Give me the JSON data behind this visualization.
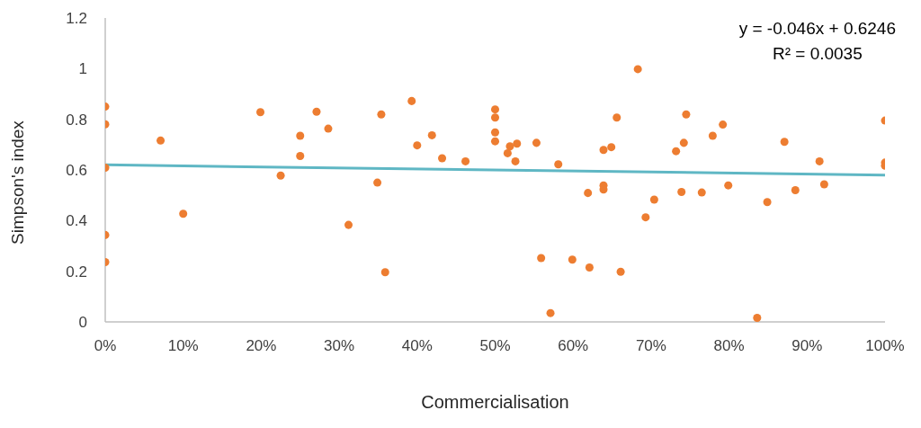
{
  "chart_data": {
    "type": "scatter",
    "xlabel": "Commercialisation",
    "ylabel": "Simpson's index",
    "annotations": [
      "y = -0.046x + 0.6246",
      "R² = 0.0035"
    ],
    "xlim": [
      0,
      1
    ],
    "ylim": [
      0,
      1.2
    ],
    "xticks": [
      {
        "value": 0,
        "label": "0%"
      },
      {
        "value": 0.1,
        "label": "10%"
      },
      {
        "value": 0.2,
        "label": "20%"
      },
      {
        "value": 0.3,
        "label": "30%"
      },
      {
        "value": 0.4,
        "label": "40%"
      },
      {
        "value": 0.5,
        "label": "50%"
      },
      {
        "value": 0.6,
        "label": "60%"
      },
      {
        "value": 0.7,
        "label": "70%"
      },
      {
        "value": 0.8,
        "label": "80%"
      },
      {
        "value": 0.9,
        "label": "90%"
      },
      {
        "value": 1,
        "label": "100%"
      }
    ],
    "yticks": [
      0,
      0.2,
      0.4,
      0.6,
      0.8,
      1,
      1.2
    ],
    "grid": false,
    "legend": false,
    "series": [
      {
        "marker": "circle",
        "color": "#ed7d31",
        "x": [
          0,
          0,
          0,
          0,
          0,
          0.071,
          0.1,
          0.199,
          0.225,
          0.25,
          0.25,
          0.271,
          0.286,
          0.312,
          0.349,
          0.354,
          0.359,
          0.393,
          0.4,
          0.419,
          0.432,
          0.462,
          0.5,
          0.5,
          0.5,
          0.5,
          0.519,
          0.528,
          0.516,
          0.526,
          0.553,
          0.581,
          0.559,
          0.571,
          0.599,
          0.621,
          0.619,
          0.639,
          0.639,
          0.639,
          0.649,
          0.656,
          0.661,
          0.683,
          0.693,
          0.704,
          0.732,
          0.742,
          0.739,
          0.745,
          0.765,
          0.779,
          0.792,
          0.799,
          0.836,
          0.849,
          0.871,
          0.885,
          0.916,
          0.922,
          1,
          1,
          1
        ],
        "values": [
          0.85,
          0.78,
          0.609,
          0.343,
          0.236,
          0.716,
          0.427,
          0.828,
          0.578,
          0.735,
          0.655,
          0.83,
          0.763,
          0.383,
          0.55,
          0.819,
          0.196,
          0.872,
          0.697,
          0.737,
          0.646,
          0.634,
          0.839,
          0.807,
          0.748,
          0.713,
          0.693,
          0.704,
          0.666,
          0.634,
          0.707,
          0.622,
          0.252,
          0.035,
          0.246,
          0.215,
          0.509,
          0.539,
          0.523,
          0.679,
          0.69,
          0.807,
          0.198,
          0.998,
          0.413,
          0.483,
          0.674,
          0.707,
          0.513,
          0.819,
          0.511,
          0.735,
          0.779,
          0.539,
          0.016,
          0.473,
          0.711,
          0.52,
          0.634,
          0.543,
          0.795,
          0.629,
          0.617
        ]
      },
      {
        "type": "line",
        "marker": "none",
        "color": "#5fb7c4",
        "line_style": "solid",
        "x": [
          0,
          1
        ],
        "values": [
          0.62,
          0.58
        ]
      }
    ]
  }
}
